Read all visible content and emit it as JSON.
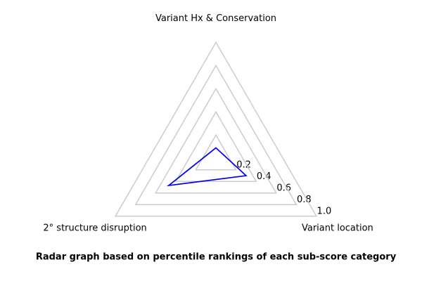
{
  "chart_data": {
    "type": "radar",
    "title": "Radar graph based on percentile rankings of each sub-score category",
    "categories": [
      "Variant Hx & Conservation",
      "2° structure disruption",
      "Variant location"
    ],
    "values": [
      0.09,
      0.47,
      0.3
    ],
    "color": "#0000ee",
    "grid_color": "#cccccc",
    "rlim": [
      0,
      1
    ],
    "rticks": [
      0.2,
      0.4,
      0.6,
      0.8,
      {
        "value": 1,
        "label": "1.0"
      }
    ],
    "grid": true
  }
}
